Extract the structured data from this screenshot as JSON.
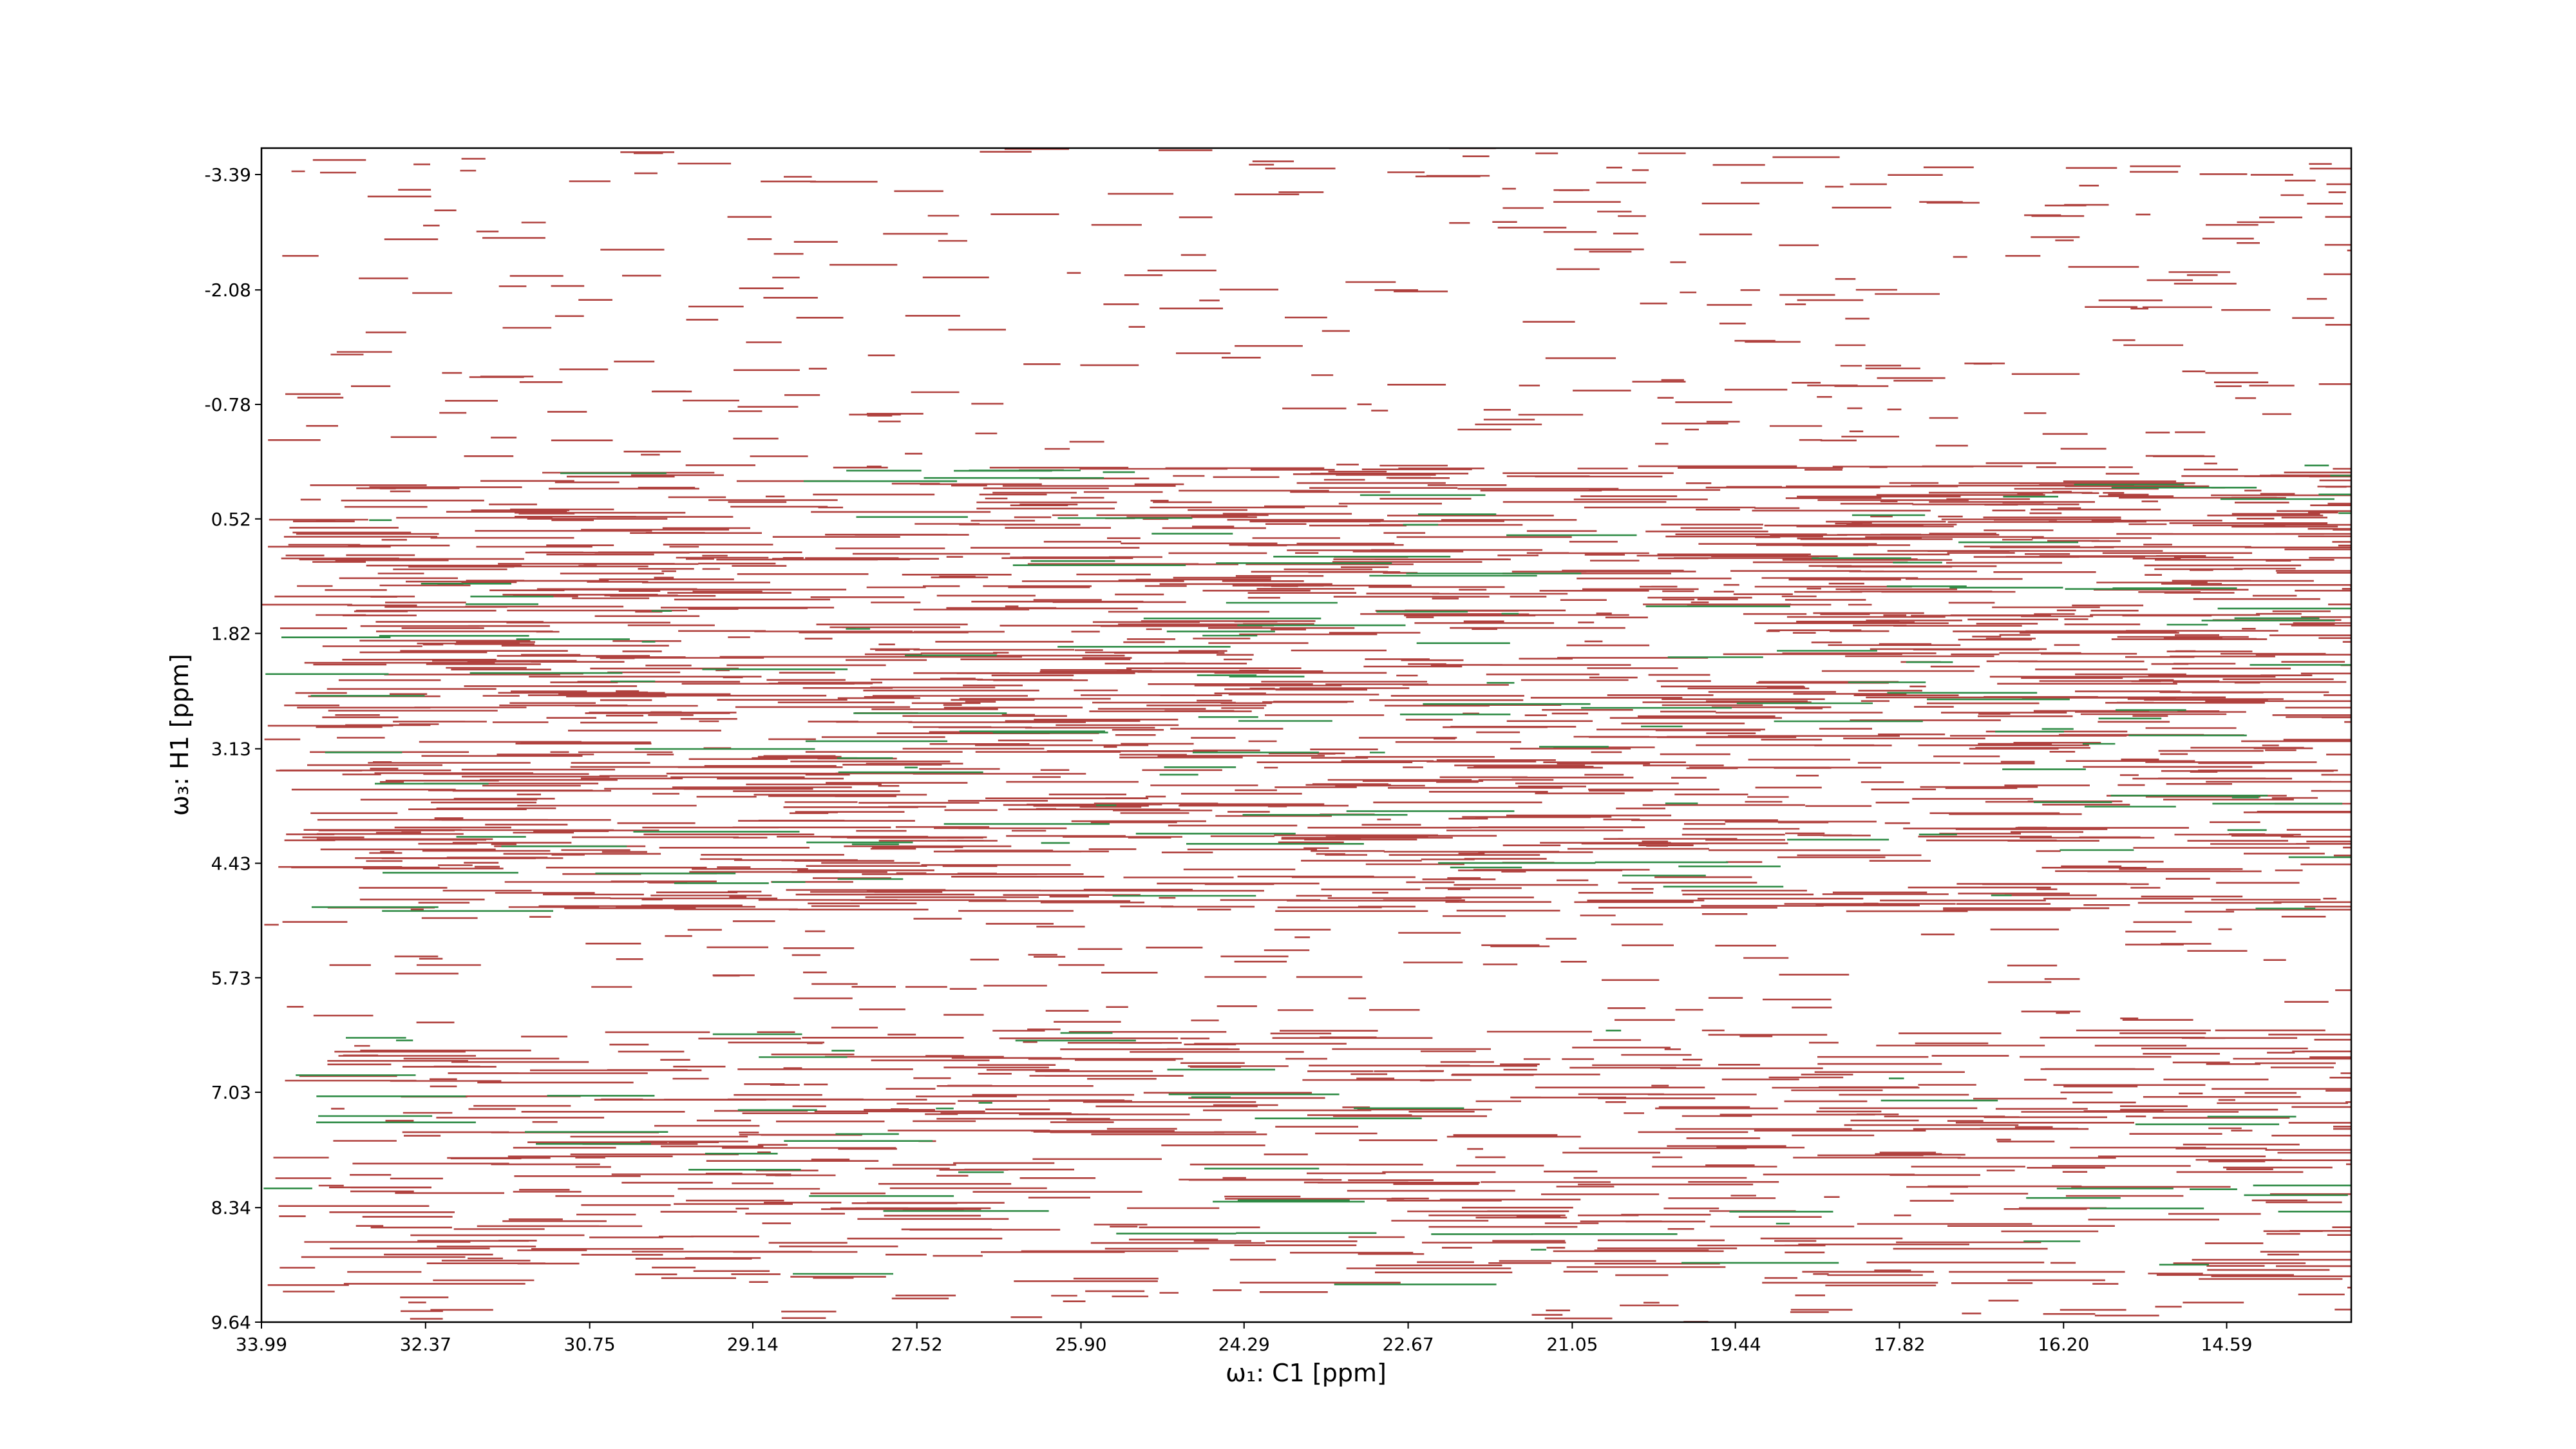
{
  "chart_data": {
    "type": "contour",
    "x_label": "ω₁: C1 [ppm]",
    "y_label": "ω₃: H1 [ppm]",
    "xlim": [
      33.99,
      13.36
    ],
    "ylim": [
      9.64,
      -3.69
    ],
    "xticks": [
      33.99,
      32.37,
      30.75,
      29.14,
      27.52,
      {
        "value": 25.9,
        "label": "25.90"
      },
      24.29,
      22.67,
      21.05,
      19.44,
      17.82,
      {
        "value": 16.2,
        "label": "16.20"
      },
      14.59
    ],
    "yticks": [
      -3.39,
      -2.08,
      -0.78,
      0.52,
      1.82,
      3.13,
      4.43,
      5.73,
      7.03,
      8.34,
      9.64
    ],
    "positive_color": "#b0413e",
    "negative_color": "#2e8b45"
  }
}
